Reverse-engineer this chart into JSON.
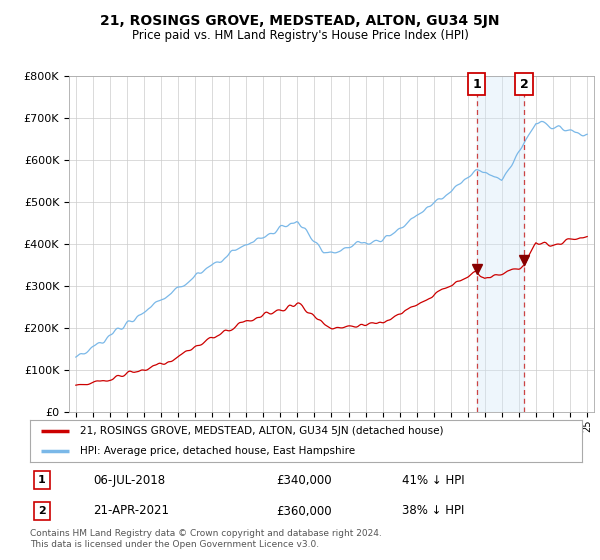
{
  "title": "21, ROSINGS GROVE, MEDSTEAD, ALTON, GU34 5JN",
  "subtitle": "Price paid vs. HM Land Registry's House Price Index (HPI)",
  "ylim": [
    0,
    800000
  ],
  "yticks": [
    0,
    100000,
    200000,
    300000,
    400000,
    500000,
    600000,
    700000,
    800000
  ],
  "ytick_labels": [
    "£0",
    "£100K",
    "£200K",
    "£300K",
    "£400K",
    "£500K",
    "£600K",
    "£700K",
    "£800K"
  ],
  "hpi_color": "#7ab8e8",
  "price_color": "#cc0000",
  "shade_color": "#d0e8f8",
  "marker1_date": 2018.51,
  "marker2_date": 2021.3,
  "marker1_price": 340000,
  "marker2_price": 360000,
  "marker1_label": "06-JUL-2018",
  "marker2_label": "21-APR-2021",
  "marker1_hpi_pct": "41% ↓ HPI",
  "marker2_hpi_pct": "38% ↓ HPI",
  "legend_label_price": "21, ROSINGS GROVE, MEDSTEAD, ALTON, GU34 5JN (detached house)",
  "legend_label_hpi": "HPI: Average price, detached house, East Hampshire",
  "footnote": "Contains HM Land Registry data © Crown copyright and database right 2024.\nThis data is licensed under the Open Government Licence v3.0.",
  "background_color": "#ffffff",
  "grid_color": "#cccccc"
}
